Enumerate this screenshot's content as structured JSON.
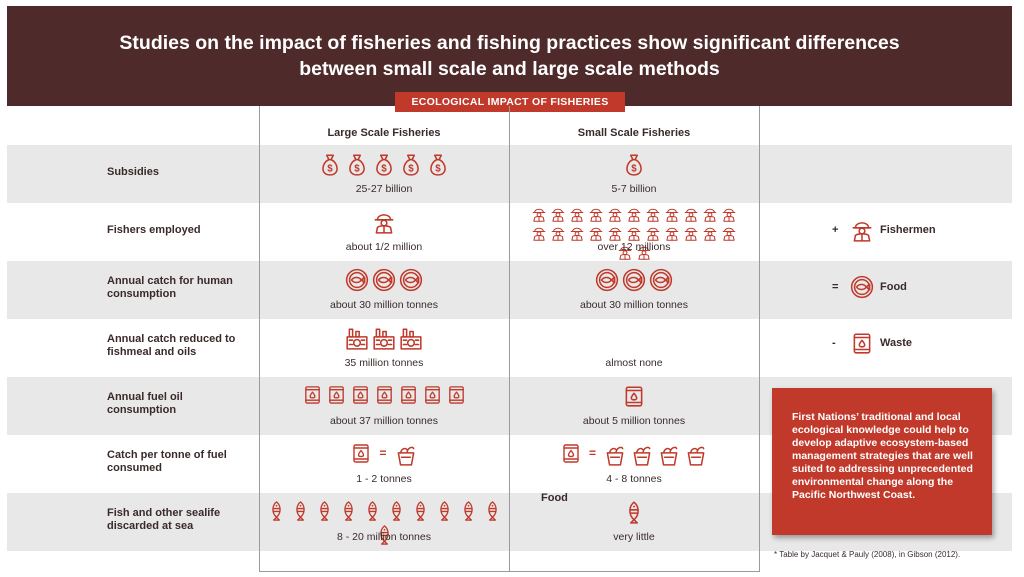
{
  "header": {
    "line1": "Studies on the impact of fisheries and fishing practices show significant differences",
    "line2": "between small scale and large scale methods"
  },
  "banner": "ECOLOGICAL IMPACT OF FISHERIES",
  "columns": {
    "large": "Large Scale Fisheries",
    "small": "Small Scale Fisheries"
  },
  "rows": [
    {
      "label_lines": [
        "Subsidies"
      ],
      "large_value": "25-27 billion",
      "small_value": "5-7 billion",
      "large_icon": "money-bag-icon",
      "large_count": 5,
      "small_icon": "money-bag-icon",
      "small_count": 1
    },
    {
      "label_lines": [
        "Fishers employed"
      ],
      "large_value": "about 1/2 million",
      "small_value": "over 12 millions",
      "large_icon": "fisherman-icon",
      "large_count": 1,
      "small_icon": "fisherman-icon",
      "small_count": 24
    },
    {
      "label_lines": [
        "Annual catch for human",
        "consumption"
      ],
      "large_value": "about 30 million tonnes",
      "small_value": "about 30 million tonnes",
      "large_icon": "fish-plate-icon",
      "large_count": 3,
      "small_icon": "fish-plate-icon",
      "small_count": 3
    },
    {
      "label_lines": [
        "Annual catch reduced to",
        "fishmeal and oils"
      ],
      "large_value": "35 million tonnes",
      "small_value": "almost none",
      "large_icon": "factory-icon",
      "large_count": 3,
      "small_icon": "",
      "small_count": 0
    },
    {
      "label_lines": [
        "Annual fuel oil",
        "consumption"
      ],
      "large_value": "about 37 million tonnes",
      "small_value": "about 5 million tonnes",
      "large_icon": "oil-barrel-icon",
      "large_count": 7,
      "small_icon": "oil-barrel-icon",
      "small_count": 1
    },
    {
      "label_lines": [
        "Catch per tonne of fuel",
        "consumed"
      ],
      "large_value": "1 - 2 tonnes",
      "small_value": "4 - 8 tonnes",
      "large_icon": "fish-bucket-icon",
      "large_count": 1,
      "small_icon": "fish-bucket-icon",
      "small_count": 4,
      "equals": "="
    },
    {
      "label_lines": [
        "Fish and other sealife",
        "discarded at sea"
      ],
      "large_value": "8 - 20 million tonnes",
      "small_value": "very little",
      "large_icon": "fish-icon",
      "large_count": 11,
      "small_icon": "fish-icon",
      "small_count": 1
    }
  ],
  "floating_label": "Food",
  "legend": [
    {
      "symbol": "+",
      "label": "Fishermen",
      "icon": "fisherman-icon"
    },
    {
      "symbol": "=",
      "label": "Food",
      "icon": "fish-plate-icon"
    },
    {
      "symbol": "-",
      "label": "Waste",
      "icon": "oil-barrel-icon"
    }
  ],
  "callout": "First Nations’ traditional and local ecological knowledge could help to develop adaptive ecosystem-based management strategies that are well suited to addressing unprecedented environmental change along the Pacific Northwest Coast.",
  "footnote": "* Table by Jacquet & Pauly (2008), in Gibson (2012).",
  "colors": {
    "header_bg": "#4f2a2b",
    "accent_red": "#c0392b",
    "row_gray": "#e8e8e8",
    "text_dark": "#3a2a2a"
  }
}
